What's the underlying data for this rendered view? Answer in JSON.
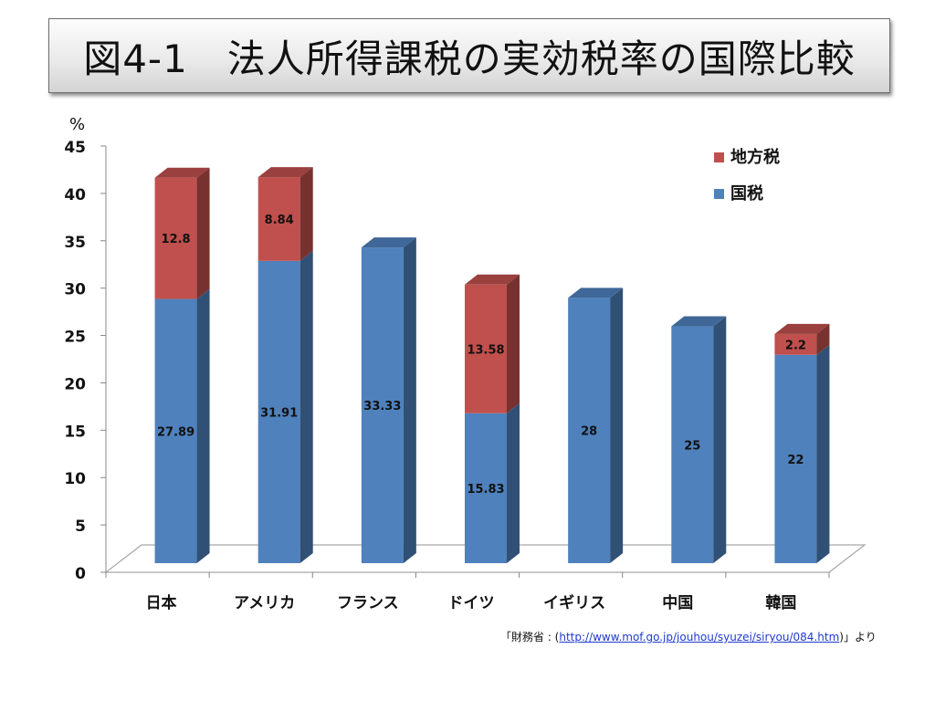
{
  "title": "図4-1　法人所得課税の実効税率の国際比較",
  "source": {
    "prefix": "「財務省 : (",
    "link": "http://www.mof.go.jp/jouhou/syuzei/siryou/084.htm",
    "suffix": ")」より"
  },
  "chart_data": {
    "type": "bar",
    "stacked": true,
    "three_d": true,
    "title": "",
    "xlabel": "",
    "ylabel": "%",
    "ylim": [
      0,
      45
    ],
    "yticks": [
      0,
      5,
      10,
      15,
      20,
      25,
      30,
      35,
      40,
      45
    ],
    "grid": false,
    "legend_position": "top-right",
    "categories": [
      "日本",
      "アメリカ",
      "フランス",
      "ドイツ",
      "イギリス",
      "中国",
      "韓国"
    ],
    "series": [
      {
        "name": "国税",
        "color": "#4f81bd",
        "values": [
          27.89,
          31.91,
          33.33,
          15.83,
          28,
          25,
          22
        ],
        "labels": [
          "27.89",
          "31.91",
          "33.33",
          "15.83",
          "28",
          "25",
          "22"
        ]
      },
      {
        "name": "地方税",
        "color": "#c0504d",
        "values": [
          12.8,
          8.84,
          0,
          13.58,
          0,
          0,
          2.2
        ],
        "labels": [
          "12.8",
          "8.84",
          "",
          "13.58",
          "",
          "",
          "2.2"
        ]
      }
    ],
    "legend_order": [
      "地方税",
      "国税"
    ]
  }
}
